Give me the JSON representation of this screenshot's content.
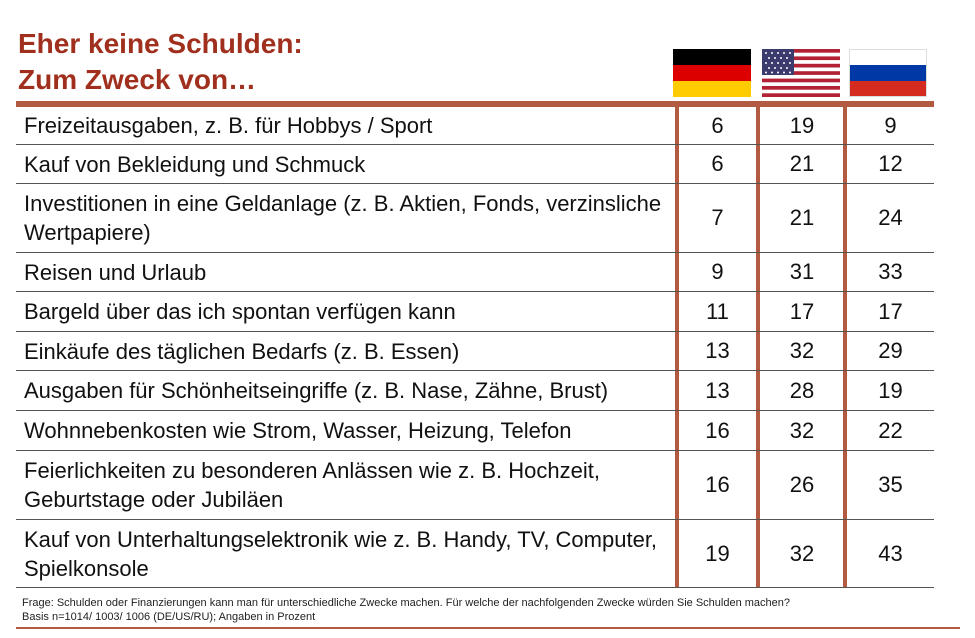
{
  "title": {
    "line1": "Eher keine Schulden:",
    "line2": "Zum Zweck von…"
  },
  "flags": [
    "germany-flag",
    "usa-flag",
    "russia-flag"
  ],
  "colors": {
    "title": "#a0301d",
    "rule": "#b35a43"
  },
  "rows": [
    {
      "label": "Freizeitausgaben, z. B. für Hobbys / Sport",
      "de": "6",
      "us": "19",
      "ru": "9"
    },
    {
      "label": "Kauf von Bekleidung und Schmuck",
      "de": "6",
      "us": "21",
      "ru": "12"
    },
    {
      "label": "Investitionen in eine Geldanlage (z. B. Aktien, Fonds, verzinsliche Wertpapiere)",
      "de": "7",
      "us": "21",
      "ru": "24"
    },
    {
      "label": "Reisen und Urlaub",
      "de": "9",
      "us": "31",
      "ru": "33"
    },
    {
      "label": "Bargeld über das ich spontan verfügen kann",
      "de": "11",
      "us": "17",
      "ru": "17"
    },
    {
      "label": "Einkäufe des täglichen Bedarfs (z. B. Essen)",
      "de": "13",
      "us": "32",
      "ru": "29"
    },
    {
      "label": "Ausgaben für Schönheitseingriffe (z. B. Nase, Zähne, Brust)",
      "de": "13",
      "us": "28",
      "ru": "19"
    },
    {
      "label": "Wohnnebenkosten wie Strom, Wasser, Heizung, Telefon",
      "de": "16",
      "us": "32",
      "ru": "22"
    },
    {
      "label": "Feierlichkeiten zu besonderen Anlässen wie z. B. Hochzeit, Geburtstage oder Jubiläen",
      "de": "16",
      "us": "26",
      "ru": "35"
    },
    {
      "label": "Kauf von Unterhaltungselektronik wie z. B. Handy, TV, Computer, Spielkonsole",
      "de": "19",
      "us": "32",
      "ru": "43"
    }
  ],
  "footnote": {
    "line1": "Frage: Schulden oder Finanzierungen kann man für unterschiedliche Zwecke machen. Für welche der nachfolgenden Zwecke würden Sie Schulden machen?",
    "line2": "Basis n=1014/ 1003/ 1006 (DE/US/RU); Angaben in Prozent"
  }
}
